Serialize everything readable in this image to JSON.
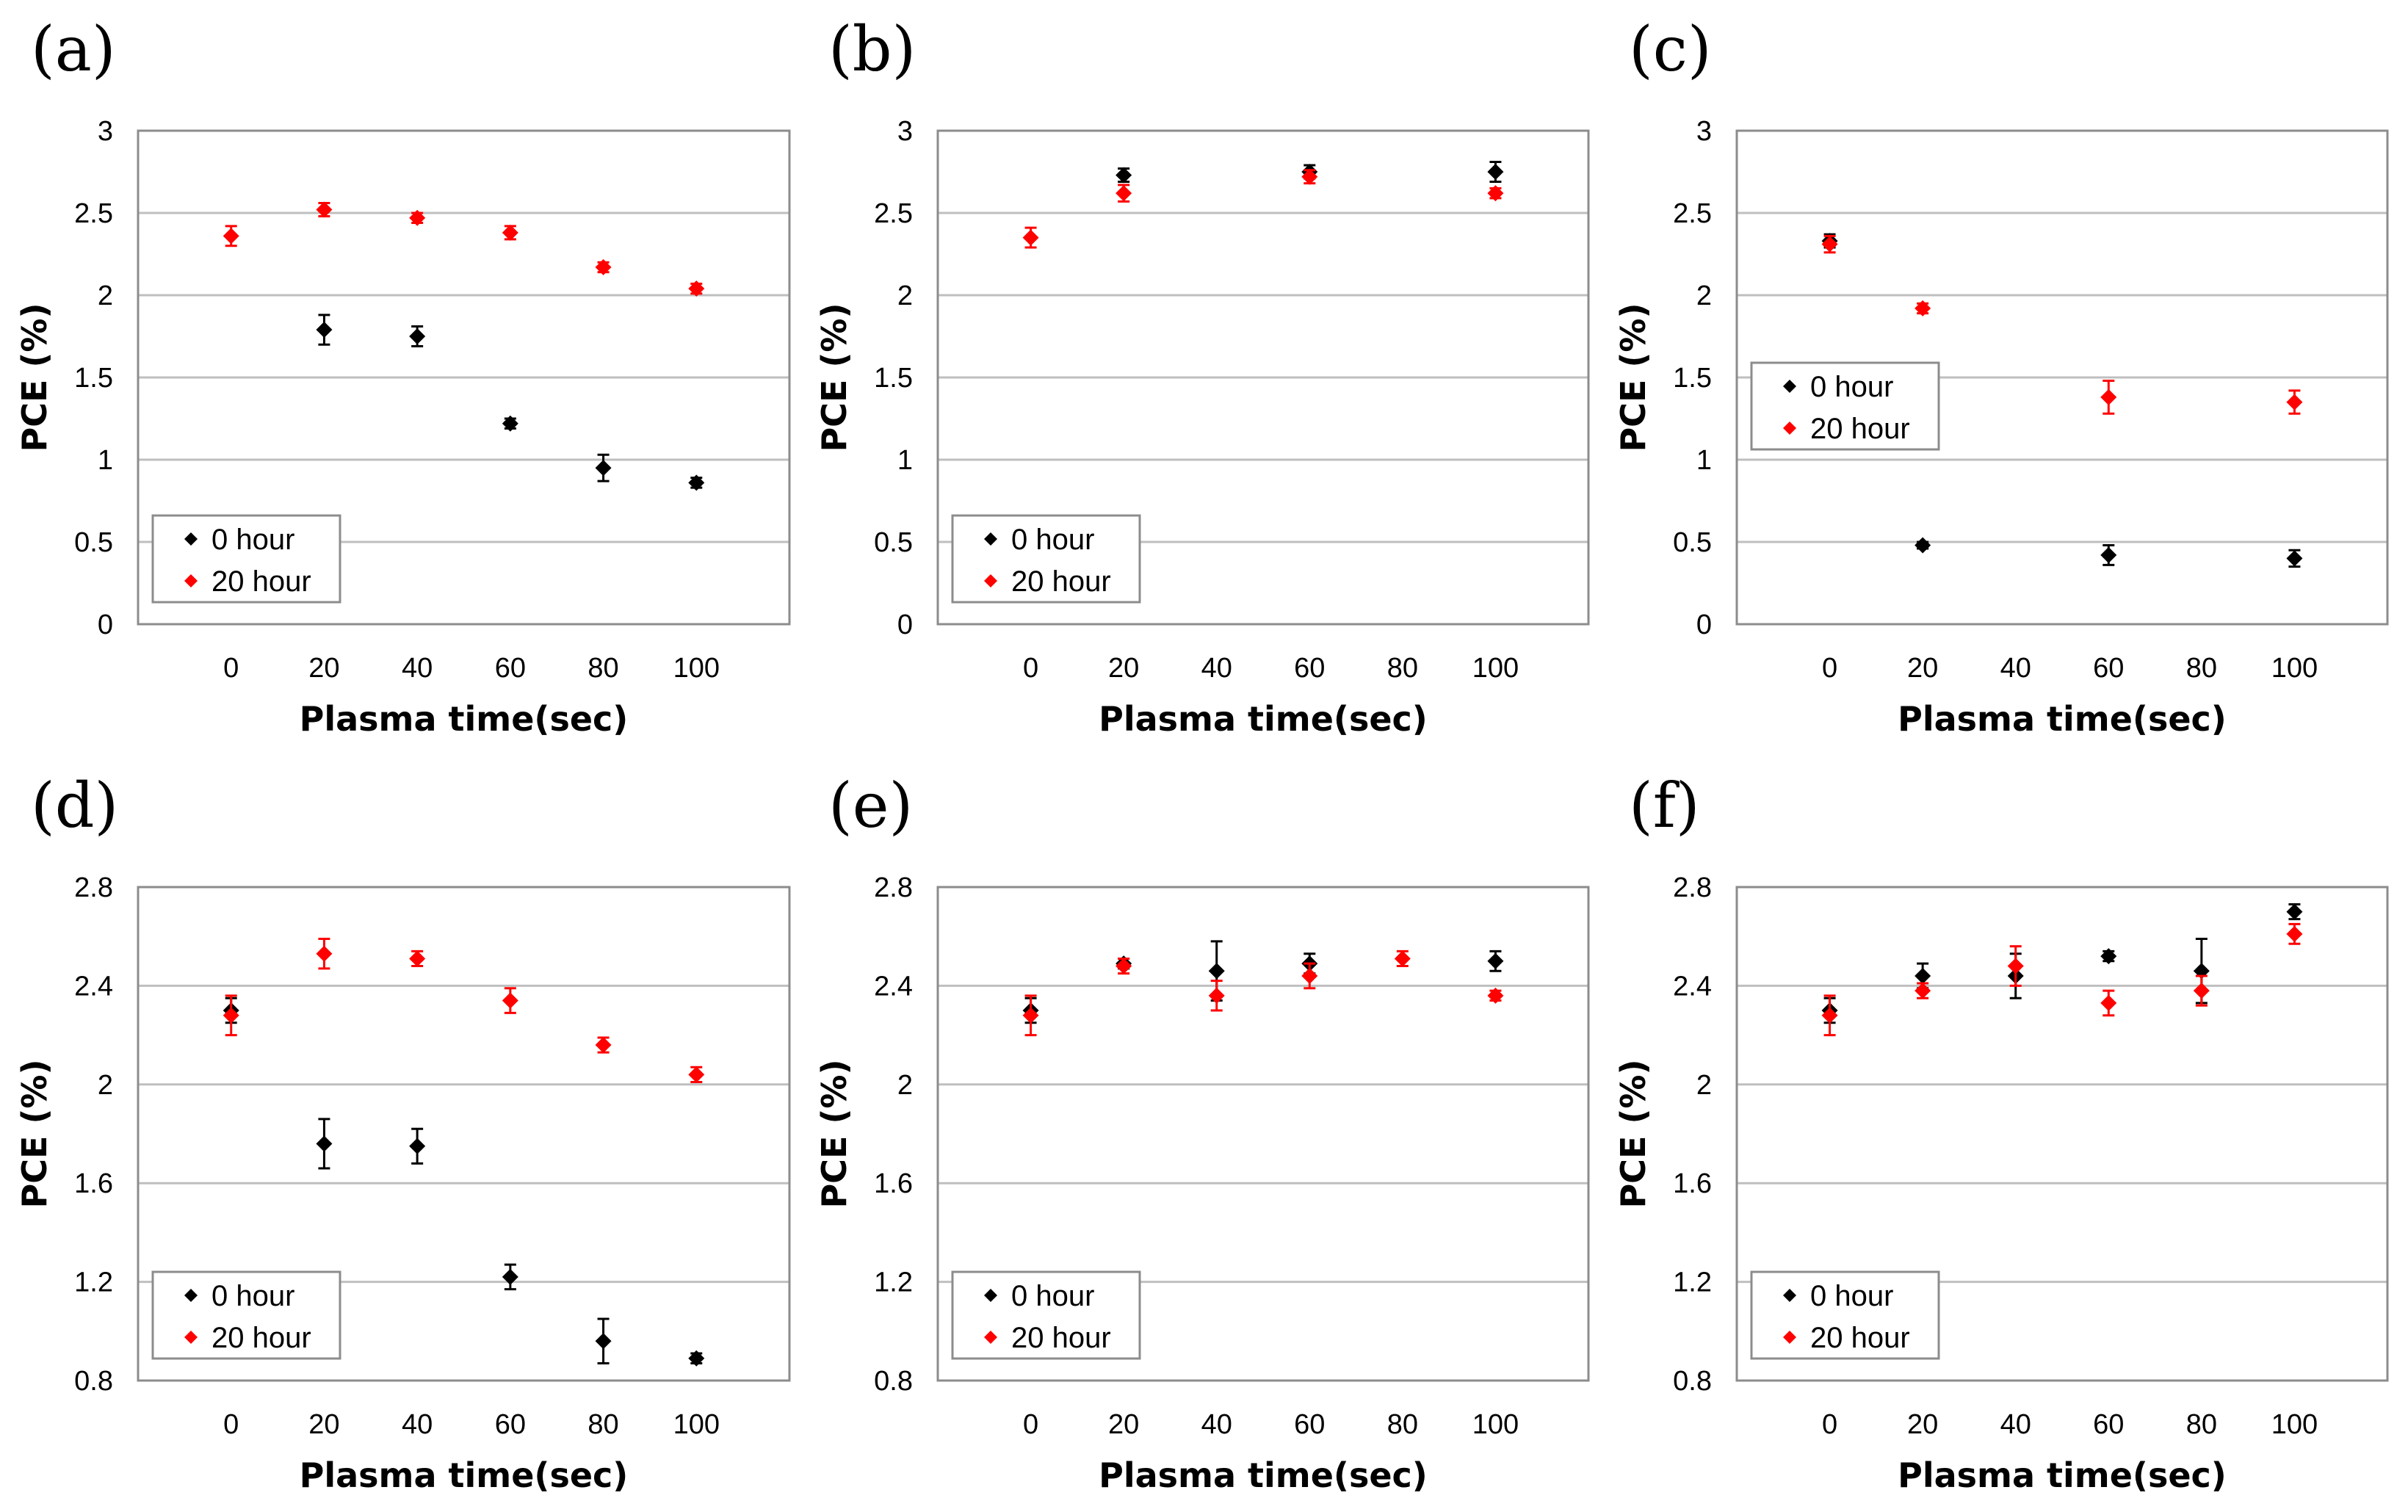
{
  "colors": {
    "hour0": "#000000",
    "hour20": "#ff0000",
    "grid": "#bfbfbf",
    "frame": "#8c8c8c"
  },
  "chart_data": [
    {
      "panel": "(a)",
      "type": "scatter",
      "xlabel": "Plasma time(sec)",
      "ylabel": "PCE (%)",
      "xlim": [
        -20,
        120
      ],
      "ylim": [
        0,
        3
      ],
      "xticks": [
        0,
        20,
        40,
        60,
        80,
        100
      ],
      "yticks": [
        0,
        0.5,
        1,
        1.5,
        2,
        2.5,
        3
      ],
      "ytick_labels": [
        "0",
        "0.5",
        "1",
        "1.5",
        "2",
        "2.5",
        "3"
      ],
      "legend": {
        "position": "bottom-left"
      },
      "series": [
        {
          "name": "0 hour",
          "color": "#000000",
          "x": [
            20,
            40,
            60,
            80,
            100
          ],
          "y": [
            1.79,
            1.75,
            1.22,
            0.95,
            0.86
          ],
          "err": [
            0.09,
            0.06,
            0.03,
            0.08,
            0.03
          ]
        },
        {
          "name": "20 hour",
          "color": "#ff0000",
          "x": [
            0,
            20,
            40,
            60,
            80,
            100
          ],
          "y": [
            2.36,
            2.52,
            2.47,
            2.38,
            2.17,
            2.04
          ],
          "err": [
            0.06,
            0.04,
            0.03,
            0.04,
            0.03,
            0.03
          ]
        }
      ]
    },
    {
      "panel": "(b)",
      "type": "scatter",
      "xlabel": "Plasma time(sec)",
      "ylabel": "PCE (%)",
      "xlim": [
        -20,
        120
      ],
      "ylim": [
        0,
        3
      ],
      "xticks": [
        0,
        20,
        40,
        60,
        80,
        100
      ],
      "yticks": [
        0,
        0.5,
        1,
        1.5,
        2,
        2.5,
        3
      ],
      "ytick_labels": [
        "0",
        "0.5",
        "1",
        "1.5",
        "2",
        "2.5",
        "3"
      ],
      "legend": {
        "position": "bottom-left"
      },
      "series": [
        {
          "name": "0 hour",
          "color": "#000000",
          "x": [
            20,
            60,
            100
          ],
          "y": [
            2.73,
            2.75,
            2.75
          ],
          "err": [
            0.04,
            0.04,
            0.06
          ]
        },
        {
          "name": "20 hour",
          "color": "#ff0000",
          "x": [
            0,
            20,
            60,
            100
          ],
          "y": [
            2.35,
            2.62,
            2.72,
            2.62
          ],
          "err": [
            0.06,
            0.05,
            0.04,
            0.03
          ]
        }
      ]
    },
    {
      "panel": "(c)",
      "type": "scatter",
      "xlabel": "Plasma time(sec)",
      "ylabel": "PCE (%)",
      "xlim": [
        -20,
        120
      ],
      "ylim": [
        0,
        3
      ],
      "xticks": [
        0,
        20,
        40,
        60,
        80,
        100
      ],
      "yticks": [
        0,
        0.5,
        1,
        1.5,
        2,
        2.5,
        3
      ],
      "ytick_labels": [
        "0",
        "0.5",
        "1",
        "1.5",
        "2",
        "2.5",
        "3"
      ],
      "legend": {
        "position": "center-left"
      },
      "series": [
        {
          "name": "0 hour",
          "color": "#000000",
          "x": [
            0,
            20,
            60,
            100
          ],
          "y": [
            2.33,
            0.48,
            0.42,
            0.4
          ],
          "err": [
            0.04,
            0.02,
            0.06,
            0.05
          ]
        },
        {
          "name": "20 hour",
          "color": "#ff0000",
          "x": [
            0,
            20,
            60,
            100
          ],
          "y": [
            2.31,
            1.92,
            1.38,
            1.35
          ],
          "err": [
            0.05,
            0.03,
            0.1,
            0.07
          ]
        }
      ]
    },
    {
      "panel": "(d)",
      "type": "scatter",
      "xlabel": "Plasma time(sec)",
      "ylabel": "PCE (%)",
      "xlim": [
        -20,
        120
      ],
      "ylim": [
        0.8,
        2.8
      ],
      "xticks": [
        0,
        20,
        40,
        60,
        80,
        100
      ],
      "yticks": [
        0.8,
        1.2,
        1.6,
        2,
        2.4,
        2.8
      ],
      "ytick_labels": [
        "0.8",
        "1.2",
        "1.6",
        "2",
        "2.4",
        "2.8"
      ],
      "legend": {
        "position": "bottom-left"
      },
      "series": [
        {
          "name": "0 hour",
          "color": "#000000",
          "x": [
            0,
            20,
            40,
            60,
            80,
            100
          ],
          "y": [
            2.3,
            1.76,
            1.75,
            1.22,
            0.96,
            0.89
          ],
          "err": [
            0.05,
            0.1,
            0.07,
            0.05,
            0.09,
            0.02
          ]
        },
        {
          "name": "20 hour",
          "color": "#ff0000",
          "x": [
            0,
            20,
            40,
            60,
            80,
            100
          ],
          "y": [
            2.28,
            2.53,
            2.51,
            2.34,
            2.16,
            2.04
          ],
          "err": [
            0.08,
            0.06,
            0.03,
            0.05,
            0.03,
            0.03
          ]
        }
      ]
    },
    {
      "panel": "(e)",
      "type": "scatter",
      "xlabel": "Plasma time(sec)",
      "ylabel": "PCE (%)",
      "xlim": [
        -20,
        120
      ],
      "ylim": [
        0.8,
        2.8
      ],
      "xticks": [
        0,
        20,
        40,
        60,
        80,
        100
      ],
      "yticks": [
        0.8,
        1.2,
        1.6,
        2,
        2.4,
        2.8
      ],
      "ytick_labels": [
        "0.8",
        "1.2",
        "1.6",
        "2",
        "2.4",
        "2.8"
      ],
      "legend": {
        "position": "bottom-left"
      },
      "series": [
        {
          "name": "0 hour",
          "color": "#000000",
          "x": [
            0,
            20,
            40,
            60,
            100
          ],
          "y": [
            2.3,
            2.49,
            2.46,
            2.49,
            2.5
          ],
          "err": [
            0.05,
            0.02,
            0.12,
            0.04,
            0.04
          ]
        },
        {
          "name": "20 hour",
          "color": "#ff0000",
          "x": [
            0,
            20,
            40,
            60,
            80,
            100
          ],
          "y": [
            2.28,
            2.48,
            2.36,
            2.44,
            2.51,
            2.36
          ],
          "err": [
            0.08,
            0.03,
            0.06,
            0.05,
            0.03,
            0.02
          ]
        }
      ]
    },
    {
      "panel": "(f)",
      "type": "scatter",
      "xlabel": "Plasma time(sec)",
      "ylabel": "PCE (%)",
      "xlim": [
        -20,
        120
      ],
      "ylim": [
        0.8,
        2.8
      ],
      "xticks": [
        0,
        20,
        40,
        60,
        80,
        100
      ],
      "yticks": [
        0.8,
        1.2,
        1.6,
        2,
        2.4,
        2.8
      ],
      "ytick_labels": [
        "0.8",
        "1.2",
        "1.6",
        "2",
        "2.4",
        "2.8"
      ],
      "legend": {
        "position": "bottom-left"
      },
      "series": [
        {
          "name": "0 hour",
          "color": "#000000",
          "x": [
            0,
            20,
            40,
            60,
            80,
            100
          ],
          "y": [
            2.3,
            2.44,
            2.44,
            2.52,
            2.46,
            2.7
          ],
          "err": [
            0.05,
            0.05,
            0.09,
            0.02,
            0.13,
            0.03
          ]
        },
        {
          "name": "20 hour",
          "color": "#ff0000",
          "x": [
            0,
            20,
            40,
            60,
            80,
            100
          ],
          "y": [
            2.28,
            2.38,
            2.48,
            2.33,
            2.38,
            2.61
          ],
          "err": [
            0.08,
            0.03,
            0.08,
            0.05,
            0.06,
            0.04
          ]
        }
      ]
    }
  ]
}
